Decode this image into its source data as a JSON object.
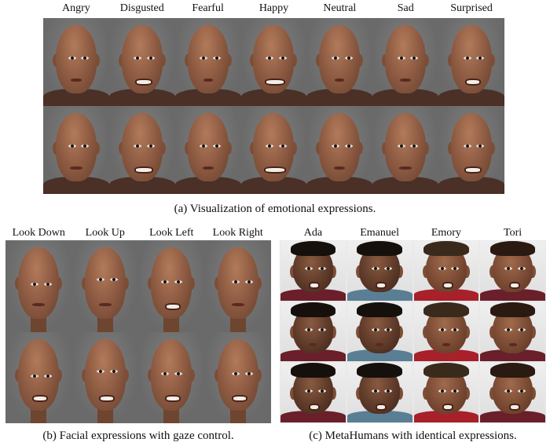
{
  "panel_a": {
    "column_labels": [
      "Angry",
      "Disgusted",
      "Fearful",
      "Happy",
      "Neutral",
      "Sad",
      "Surprised"
    ],
    "caption": "(a)  Visualization of emotional expressions."
  },
  "panel_b": {
    "column_labels": [
      "Look Down",
      "Look Up",
      "Look Left",
      "Look Right"
    ],
    "caption": "(b)  Facial expressions with gaze control."
  },
  "panel_c": {
    "column_labels": [
      "Ada",
      "Emanuel",
      "Emory",
      "Tori"
    ],
    "caption": "(c)  MetaHumans with identical expressions."
  },
  "colors": {
    "background_gray": "#6e6e6e",
    "background_light": "#e9e9e9",
    "skin": "#7a4a33",
    "shirt_maroon": "#6a1f2a",
    "shirt_blue": "#5a7f95",
    "shirt_red": "#a8202a"
  }
}
